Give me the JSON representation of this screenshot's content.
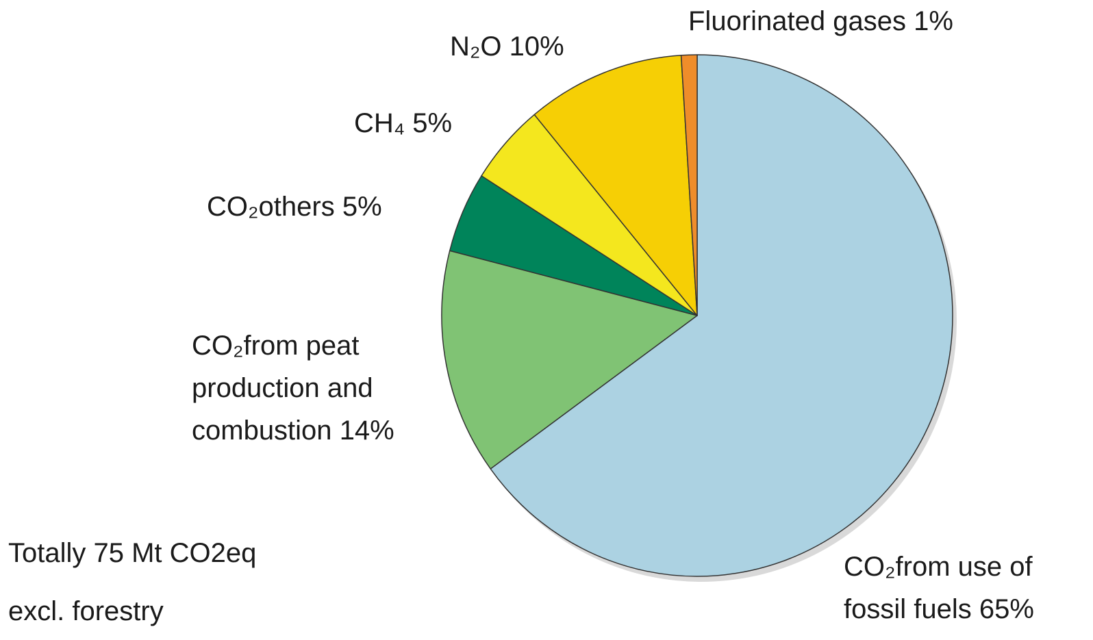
{
  "chart_data": {
    "type": "pie",
    "categories": [
      "CO₂from use of fossil fuels",
      "CO₂from peat production and combustion",
      "CO₂others",
      "CH₄",
      "N₂O",
      "Fluorinated gases"
    ],
    "values": [
      65,
      14,
      5,
      5,
      10,
      1
    ],
    "value_labels": [
      "65%",
      "14%",
      "5%",
      "5%",
      "10%",
      "1%"
    ],
    "colors": [
      "#acd2e2",
      "#80c374",
      "#00845a",
      "#f4e71e",
      "#f6cf05",
      "#ef8d2a"
    ],
    "annotations": [
      "Totally 75 Mt CO2eq",
      "excl. forestry"
    ]
  }
}
